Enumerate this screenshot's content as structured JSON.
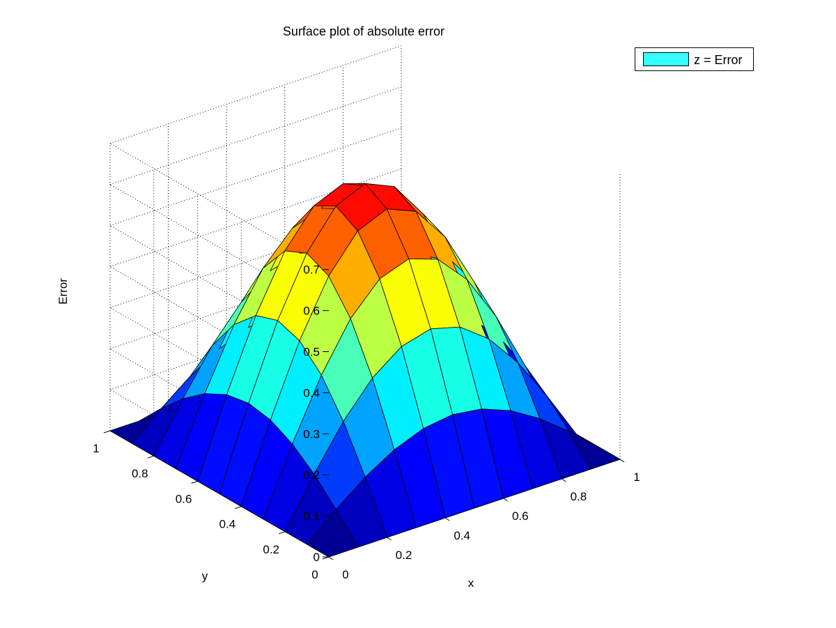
{
  "chart_data": {
    "type": "surface",
    "title": "Surface plot of absolute error",
    "xlabel": "x",
    "ylabel": "y",
    "zlabel": "Error",
    "x": [
      0,
      0.1,
      0.2,
      0.3,
      0.4,
      0.5,
      0.6,
      0.7,
      0.8,
      0.9,
      1
    ],
    "y": [
      0,
      0.1,
      0.2,
      0.3,
      0.4,
      0.5,
      0.6,
      0.7,
      0.8,
      0.9,
      1
    ],
    "z": [
      [
        0,
        0,
        0,
        0,
        0,
        0,
        0,
        0,
        0,
        0,
        0
      ],
      [
        0,
        0.061,
        0.116,
        0.159,
        0.187,
        0.197,
        0.187,
        0.159,
        0.116,
        0.061,
        0
      ],
      [
        0,
        0.116,
        0.221,
        0.303,
        0.356,
        0.375,
        0.356,
        0.303,
        0.221,
        0.116,
        0
      ],
      [
        0,
        0.159,
        0.303,
        0.417,
        0.49,
        0.515,
        0.49,
        0.417,
        0.303,
        0.159,
        0
      ],
      [
        0,
        0.187,
        0.356,
        0.49,
        0.576,
        0.606,
        0.576,
        0.49,
        0.356,
        0.187,
        0
      ],
      [
        0,
        0.197,
        0.375,
        0.515,
        0.606,
        0.637,
        0.606,
        0.515,
        0.375,
        0.197,
        0
      ],
      [
        0,
        0.187,
        0.356,
        0.49,
        0.576,
        0.606,
        0.576,
        0.49,
        0.356,
        0.187,
        0
      ],
      [
        0,
        0.159,
        0.303,
        0.417,
        0.49,
        0.515,
        0.49,
        0.417,
        0.303,
        0.159,
        0
      ],
      [
        0,
        0.116,
        0.221,
        0.303,
        0.356,
        0.375,
        0.356,
        0.303,
        0.221,
        0.116,
        0
      ],
      [
        0,
        0.061,
        0.116,
        0.159,
        0.187,
        0.197,
        0.187,
        0.159,
        0.116,
        0.061,
        0
      ],
      [
        0,
        0,
        0,
        0,
        0,
        0,
        0,
        0,
        0,
        0,
        0
      ]
    ],
    "xlim": [
      0,
      1
    ],
    "ylim": [
      0,
      1
    ],
    "zlim": [
      0,
      0.7
    ],
    "xticks": [
      "0",
      "0.2",
      "0.4",
      "0.6",
      "0.8",
      "1"
    ],
    "yticks": [
      "0",
      "0.2",
      "0.4",
      "0.6",
      "0.8",
      "1"
    ],
    "zticks": [
      "0",
      "0.1",
      "0.2",
      "0.3",
      "0.4",
      "0.5",
      "0.6",
      "0.7"
    ],
    "grid": true,
    "colormap": "jet",
    "legend": {
      "placement": "top-right",
      "entries": [
        {
          "label": "z = Error",
          "color": "#33FFFF"
        }
      ]
    }
  }
}
